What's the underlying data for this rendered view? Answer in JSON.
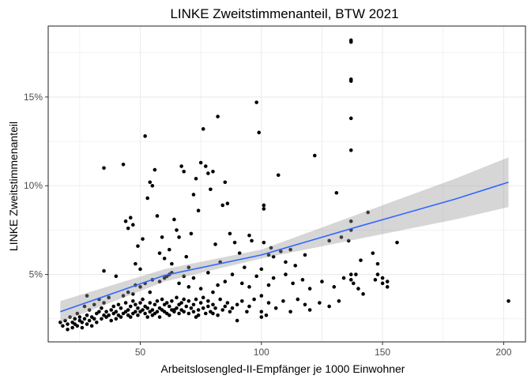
{
  "chart_data": {
    "type": "scatter",
    "title": "LINKE Zweitstimmenanteil, BTW 2021",
    "xlabel": "Arbeitslosengled-II-Empfänger je 1000 Einwohner",
    "ylabel": "LINKE Zweitstimmenanteil",
    "xlim": [
      12,
      209
    ],
    "ylim": [
      1.2,
      19.0
    ],
    "x_ticks": [
      50,
      100,
      150,
      200
    ],
    "x_tick_labels": [
      "50",
      "100",
      "150",
      "200"
    ],
    "y_ticks": [
      5,
      10,
      15
    ],
    "y_tick_labels": [
      "5%",
      "10%",
      "15%"
    ],
    "grid": true,
    "legend": "none",
    "colors": {
      "points": "#000000",
      "trend_line": "#3366ff",
      "confidence_band": "#999999",
      "grid": "#ebebeb",
      "panel_border": "#333333"
    },
    "trend": {
      "method": "lm",
      "x": [
        17,
        60,
        100,
        140,
        180,
        202
      ],
      "y": [
        2.9,
        4.95,
        6.1,
        7.7,
        9.25,
        10.2
      ],
      "ci_low": [
        2.3,
        4.6,
        5.9,
        7.0,
        8.1,
        8.8
      ],
      "ci_high": [
        3.5,
        5.3,
        6.4,
        8.4,
        10.4,
        11.6
      ]
    },
    "points": [
      [
        17,
        2.3
      ],
      [
        18,
        2.1
      ],
      [
        19,
        2.4
      ],
      [
        20,
        1.9
      ],
      [
        20,
        2.2
      ],
      [
        21,
        2.6
      ],
      [
        22,
        2.0
      ],
      [
        22,
        2.3
      ],
      [
        23,
        2.5
      ],
      [
        23,
        2.2
      ],
      [
        24,
        2.8
      ],
      [
        24,
        2.1
      ],
      [
        25,
        2.4
      ],
      [
        25,
        2.6
      ],
      [
        26,
        2.0
      ],
      [
        26,
        2.3
      ],
      [
        27,
        2.5
      ],
      [
        27,
        3.2
      ],
      [
        28,
        2.2
      ],
      [
        28,
        2.7
      ],
      [
        28,
        3.8
      ],
      [
        29,
        2.4
      ],
      [
        29,
        3.0
      ],
      [
        30,
        2.6
      ],
      [
        30,
        2.1
      ],
      [
        31,
        3.3
      ],
      [
        31,
        2.5
      ],
      [
        32,
        2.8
      ],
      [
        32,
        2.3
      ],
      [
        33,
        3.6
      ],
      [
        33,
        2.9
      ],
      [
        34,
        2.5
      ],
      [
        34,
        3.1
      ],
      [
        35,
        2.7
      ],
      [
        35,
        3.4
      ],
      [
        36,
        2.6
      ],
      [
        36,
        2.9
      ],
      [
        37,
        3.7
      ],
      [
        37,
        2.7
      ],
      [
        38,
        3.0
      ],
      [
        38,
        2.4
      ],
      [
        39,
        2.8
      ],
      [
        39,
        3.2
      ],
      [
        40,
        2.9
      ],
      [
        40,
        2.5
      ],
      [
        41,
        3.3
      ],
      [
        41,
        2.7
      ],
      [
        42,
        2.6
      ],
      [
        42,
        3.1
      ],
      [
        43,
        3.8
      ],
      [
        43,
        2.8
      ],
      [
        44,
        2.9
      ],
      [
        44,
        3.4
      ],
      [
        45,
        2.7
      ],
      [
        45,
        3.0
      ],
      [
        46,
        3.2
      ],
      [
        46,
        2.6
      ],
      [
        47,
        2.8
      ],
      [
        47,
        3.5
      ],
      [
        48,
        2.9
      ],
      [
        48,
        3.3
      ],
      [
        49,
        3.1
      ],
      [
        49,
        2.7
      ],
      [
        50,
        3.4
      ],
      [
        50,
        2.9
      ],
      [
        51,
        3.0
      ],
      [
        51,
        3.6
      ],
      [
        52,
        3.2
      ],
      [
        52,
        2.8
      ],
      [
        53,
        3.1
      ],
      [
        53,
        2.6
      ],
      [
        54,
        3.4
      ],
      [
        54,
        2.9
      ],
      [
        55,
        3.0
      ],
      [
        55,
        2.7
      ],
      [
        56,
        3.3
      ],
      [
        56,
        2.8
      ],
      [
        57,
        3.5
      ],
      [
        57,
        2.9
      ],
      [
        58,
        3.1
      ],
      [
        58,
        2.6
      ],
      [
        59,
        3.6
      ],
      [
        59,
        3.0
      ],
      [
        60,
        2.9
      ],
      [
        60,
        3.3
      ],
      [
        61,
        3.4
      ],
      [
        61,
        2.8
      ],
      [
        62,
        3.2
      ],
      [
        62,
        2.7
      ],
      [
        63,
        3.0
      ],
      [
        63,
        3.5
      ],
      [
        64,
        2.9
      ],
      [
        65,
        3.1
      ],
      [
        65,
        3.7
      ],
      [
        66,
        3.3
      ],
      [
        66,
        2.8
      ],
      [
        67,
        3.0
      ],
      [
        67,
        3.4
      ],
      [
        68,
        2.9
      ],
      [
        68,
        3.6
      ],
      [
        69,
        3.2
      ],
      [
        70,
        2.8
      ],
      [
        70,
        3.5
      ],
      [
        71,
        3.1
      ],
      [
        72,
        2.9
      ],
      [
        72,
        3.3
      ],
      [
        73,
        3.6
      ],
      [
        74,
        3.0
      ],
      [
        74,
        2.7
      ],
      [
        75,
        3.4
      ],
      [
        76,
        3.1
      ],
      [
        76,
        3.7
      ],
      [
        77,
        2.8
      ],
      [
        78,
        3.2
      ],
      [
        78,
        3.5
      ],
      [
        79,
        2.9
      ],
      [
        80,
        3.3
      ],
      [
        81,
        3.1
      ],
      [
        82,
        2.7
      ],
      [
        83,
        3.6
      ],
      [
        84,
        3.0
      ],
      [
        85,
        3.2
      ],
      [
        86,
        3.4
      ],
      [
        87,
        2.9
      ],
      [
        88,
        3.1
      ],
      [
        90,
        3.3
      ],
      [
        92,
        3.5
      ],
      [
        94,
        2.9
      ],
      [
        95,
        3.2
      ],
      [
        97,
        3.6
      ],
      [
        100,
        2.6
      ],
      [
        100,
        2.9
      ],
      [
        100,
        3.8
      ],
      [
        103,
        3.4
      ],
      [
        106,
        3.1
      ],
      [
        109,
        3.5
      ],
      [
        112,
        2.9
      ],
      [
        115,
        3.6
      ],
      [
        118,
        3.3
      ],
      [
        120,
        3.0
      ],
      [
        124,
        3.4
      ],
      [
        128,
        3.2
      ],
      [
        132,
        3.5
      ],
      [
        35,
        5.2
      ],
      [
        40,
        4.9
      ],
      [
        45,
        4.0
      ],
      [
        47,
        3.9
      ],
      [
        48,
        4.4
      ],
      [
        50,
        4.3
      ],
      [
        52,
        4.5
      ],
      [
        54,
        4.0
      ],
      [
        55,
        4.7
      ],
      [
        58,
        4.6
      ],
      [
        60,
        4.8
      ],
      [
        62,
        5.0
      ],
      [
        63,
        5.1
      ],
      [
        66,
        4.5
      ],
      [
        68,
        4.9
      ],
      [
        70,
        4.3
      ],
      [
        72,
        4.8
      ],
      [
        75,
        4.2
      ],
      [
        78,
        5.1
      ],
      [
        80,
        4.0
      ],
      [
        82,
        4.4
      ],
      [
        85,
        4.6
      ],
      [
        88,
        5.0
      ],
      [
        92,
        4.5
      ],
      [
        95,
        4.3
      ],
      [
        98,
        4.9
      ],
      [
        100,
        5.3
      ],
      [
        103,
        4.4
      ],
      [
        105,
        4.8
      ],
      [
        110,
        5.0
      ],
      [
        113,
        4.5
      ],
      [
        117,
        4.7
      ],
      [
        120,
        4.2
      ],
      [
        125,
        4.6
      ],
      [
        130,
        4.3
      ],
      [
        134,
        4.8
      ],
      [
        137,
        4.7
      ],
      [
        137,
        5.0
      ],
      [
        138,
        4.5
      ],
      [
        140,
        4.2
      ],
      [
        142,
        3.9
      ],
      [
        147,
        4.7
      ],
      [
        148,
        5.0
      ],
      [
        150,
        4.8
      ],
      [
        152,
        4.6
      ],
      [
        152,
        4.3
      ],
      [
        156,
        6.8
      ],
      [
        43,
        11.2
      ],
      [
        35,
        11.0
      ],
      [
        44,
        8.0
      ],
      [
        45,
        7.6
      ],
      [
        46,
        8.2
      ],
      [
        47,
        7.8
      ],
      [
        48,
        5.6
      ],
      [
        49,
        6.6
      ],
      [
        50,
        5.3
      ],
      [
        51,
        7.0
      ],
      [
        52,
        12.8
      ],
      [
        53,
        9.3
      ],
      [
        54,
        10.2
      ],
      [
        55,
        10.0
      ],
      [
        56,
        10.9
      ],
      [
        57,
        8.3
      ],
      [
        58,
        6.2
      ],
      [
        59,
        7.1
      ],
      [
        60,
        5.9
      ],
      [
        61,
        4.9
      ],
      [
        62,
        6.4
      ],
      [
        63,
        5.6
      ],
      [
        64,
        8.1
      ],
      [
        65,
        7.5
      ],
      [
        66,
        7.1
      ],
      [
        67,
        11.1
      ],
      [
        68,
        10.8
      ],
      [
        69,
        6.0
      ],
      [
        70,
        5.4
      ],
      [
        71,
        7.3
      ],
      [
        72,
        9.5
      ],
      [
        73,
        10.4
      ],
      [
        74,
        8.6
      ],
      [
        75,
        11.3
      ],
      [
        76,
        13.2
      ],
      [
        77,
        11.1
      ],
      [
        78,
        10.7
      ],
      [
        79,
        9.8
      ],
      [
        80,
        10.8
      ],
      [
        81,
        6.7
      ],
      [
        82,
        13.9
      ],
      [
        83,
        5.7
      ],
      [
        84,
        8.9
      ],
      [
        85,
        10.2
      ],
      [
        86,
        9.0
      ],
      [
        87,
        7.3
      ],
      [
        89,
        6.8
      ],
      [
        91,
        6.2
      ],
      [
        93,
        5.4
      ],
      [
        95,
        7.2
      ],
      [
        96,
        6.9
      ],
      [
        98,
        14.7
      ],
      [
        99,
        13.0
      ],
      [
        101,
        8.7
      ],
      [
        101,
        8.9
      ],
      [
        101,
        6.8
      ],
      [
        103,
        6.1
      ],
      [
        104,
        6.5
      ],
      [
        105,
        6.0
      ],
      [
        107,
        10.6
      ],
      [
        108,
        6.3
      ],
      [
        110,
        5.7
      ],
      [
        112,
        6.4
      ],
      [
        114,
        5.5
      ],
      [
        118,
        6.1
      ],
      [
        122,
        11.7
      ],
      [
        128,
        6.9
      ],
      [
        131,
        9.6
      ],
      [
        133,
        7.1
      ],
      [
        137,
        18.1
      ],
      [
        137,
        18.2
      ],
      [
        137,
        15.9
      ],
      [
        137,
        16.0
      ],
      [
        137,
        13.8
      ],
      [
        137,
        12.0
      ],
      [
        137,
        8.0
      ],
      [
        137,
        7.5
      ],
      [
        136,
        6.9
      ],
      [
        139,
        5.0
      ],
      [
        141,
        5.8
      ],
      [
        144,
        8.5
      ],
      [
        146,
        6.2
      ],
      [
        148,
        5.6
      ],
      [
        150,
        4.5
      ],
      [
        202,
        3.5
      ],
      [
        64,
        3.0
      ],
      [
        73,
        2.6
      ],
      [
        80,
        2.8
      ],
      [
        90,
        2.4
      ],
      [
        102,
        2.7
      ]
    ]
  }
}
